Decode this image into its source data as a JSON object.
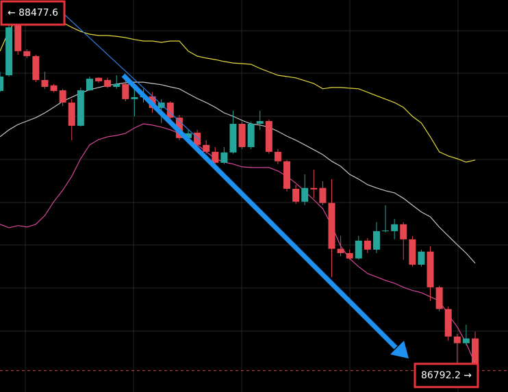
{
  "chart_data": {
    "type": "candlestick",
    "ylim": [
      86712,
      88535
    ],
    "up_color": "#26a69a",
    "down_color": "#e5464f",
    "categories": [
      null,
      null,
      null,
      null,
      null,
      null,
      null,
      null,
      null,
      null,
      null,
      null,
      null,
      null,
      null,
      null,
      null,
      null,
      null,
      null,
      null,
      null,
      null,
      null,
      null,
      null,
      null,
      null,
      null,
      null,
      null,
      null,
      null,
      null,
      null,
      null,
      null,
      null,
      null,
      null,
      null,
      null,
      null,
      null,
      null,
      null,
      null,
      null,
      null,
      null,
      null,
      null,
      null,
      null
    ],
    "open": [
      88112,
      88185,
      88424,
      88297,
      88274,
      88163,
      88138,
      88115,
      88058,
      87950,
      88115,
      88173,
      88163,
      88131,
      88144,
      88074,
      88083,
      88087,
      88033,
      88058,
      87988,
      87893,
      87918,
      87861,
      87829,
      87778,
      87826,
      87959,
      87851,
      87959,
      87972,
      87829,
      87785,
      87657,
      87597,
      87661,
      87661,
      87591,
      87378,
      87358,
      87333,
      87416,
      87374,
      87460,
      87460,
      87492,
      87422,
      87304,
      87365,
      87199,
      87098,
      86970,
      86939,
      86961
    ],
    "high": [
      88201,
      88440,
      88471,
      88306,
      88281,
      88201,
      88144,
      88122,
      88074,
      88128,
      88179,
      88176,
      88173,
      88185,
      88160,
      88122,
      88122,
      88106,
      88074,
      88064,
      88001,
      87931,
      87931,
      87883,
      87851,
      87851,
      88020,
      87969,
      87969,
      88020,
      87979,
      87842,
      87791,
      87676,
      87724,
      87746,
      87692,
      87702,
      87438,
      87374,
      87438,
      87428,
      87502,
      87581,
      87517,
      87502,
      87438,
      87374,
      87390,
      87206,
      87110,
      86983,
      87025,
      86993
    ],
    "low": [
      88106,
      88179,
      88281,
      88265,
      88153,
      88122,
      88106,
      88042,
      87883,
      87947,
      88112,
      88150,
      88125,
      88122,
      88064,
      87994,
      88058,
      88010,
      87963,
      87963,
      87883,
      87867,
      87851,
      87820,
      87772,
      87772,
      87820,
      87842,
      87842,
      87931,
      87820,
      87772,
      87645,
      87587,
      87581,
      87613,
      87581,
      87247,
      87343,
      87327,
      87327,
      87358,
      87358,
      87454,
      87422,
      87327,
      87295,
      87295,
      87136,
      87088,
      86951,
      86802,
      86929,
      86792
    ],
    "close": [
      88179,
      88408,
      88297,
      88274,
      88163,
      88131,
      88112,
      88058,
      87950,
      88115,
      88169,
      88157,
      88131,
      88144,
      88074,
      88083,
      88090,
      88033,
      88058,
      87988,
      87893,
      87915,
      87861,
      87829,
      87778,
      87826,
      87959,
      87851,
      87959,
      87972,
      87829,
      87785,
      87657,
      87597,
      87661,
      87654,
      87591,
      87378,
      87358,
      87333,
      87416,
      87374,
      87460,
      87463,
      87492,
      87422,
      87304,
      87365,
      87199,
      87098,
      86970,
      86939,
      86961,
      86808
    ],
    "series": [
      {
        "color": "#e6dc3c",
        "values": [
          88297,
          88392,
          88456,
          88478,
          88497,
          88487,
          88456,
          88430,
          88408,
          88389,
          88376,
          88370,
          88370,
          88366,
          88360,
          88351,
          88344,
          88344,
          88338,
          88344,
          88344,
          88297,
          88274,
          88265,
          88258,
          88249,
          88242,
          88239,
          88236,
          88217,
          88201,
          88185,
          88179,
          88173,
          88160,
          88147,
          88122,
          88128,
          88128,
          88125,
          88122,
          88106,
          88090,
          88074,
          88058,
          88036,
          87994,
          87963,
          87899,
          87829,
          87810,
          87797,
          87781,
          87791
        ]
      },
      {
        "color": "#c8c8c8",
        "values": [
          87899,
          87931,
          87956,
          87972,
          87988,
          88010,
          88036,
          88064,
          88083,
          88102,
          88118,
          88128,
          88138,
          88144,
          88150,
          88153,
          88153,
          88147,
          88141,
          88131,
          88122,
          88099,
          88077,
          88058,
          88036,
          88010,
          87994,
          87975,
          87959,
          87953,
          87944,
          87924,
          87902,
          87883,
          87861,
          87839,
          87816,
          87785,
          87762,
          87724,
          87702,
          87676,
          87661,
          87648,
          87638,
          87613,
          87581,
          87549,
          87527,
          87479,
          87438,
          87397,
          87358,
          87311
        ]
      },
      {
        "color": "#d9479a",
        "values": [
          87492,
          87476,
          87486,
          87479,
          87492,
          87533,
          87597,
          87651,
          87715,
          87797,
          87861,
          87886,
          87899,
          87905,
          87915,
          87940,
          87959,
          87953,
          87944,
          87931,
          87915,
          87883,
          87861,
          87829,
          87797,
          87781,
          87772,
          87759,
          87756,
          87756,
          87756,
          87740,
          87715,
          87683,
          87645,
          87606,
          87565,
          87486,
          87390,
          87333,
          87295,
          87263,
          87247,
          87231,
          87218,
          87199,
          87184,
          87174,
          87155,
          87136,
          87072,
          87015,
          86939,
          86843
        ]
      }
    ],
    "annotations": [
      {
        "value": 88477.6,
        "label": "← 88477.6"
      },
      {
        "value": 86792.2,
        "label": "86792.2 →"
      }
    ]
  }
}
